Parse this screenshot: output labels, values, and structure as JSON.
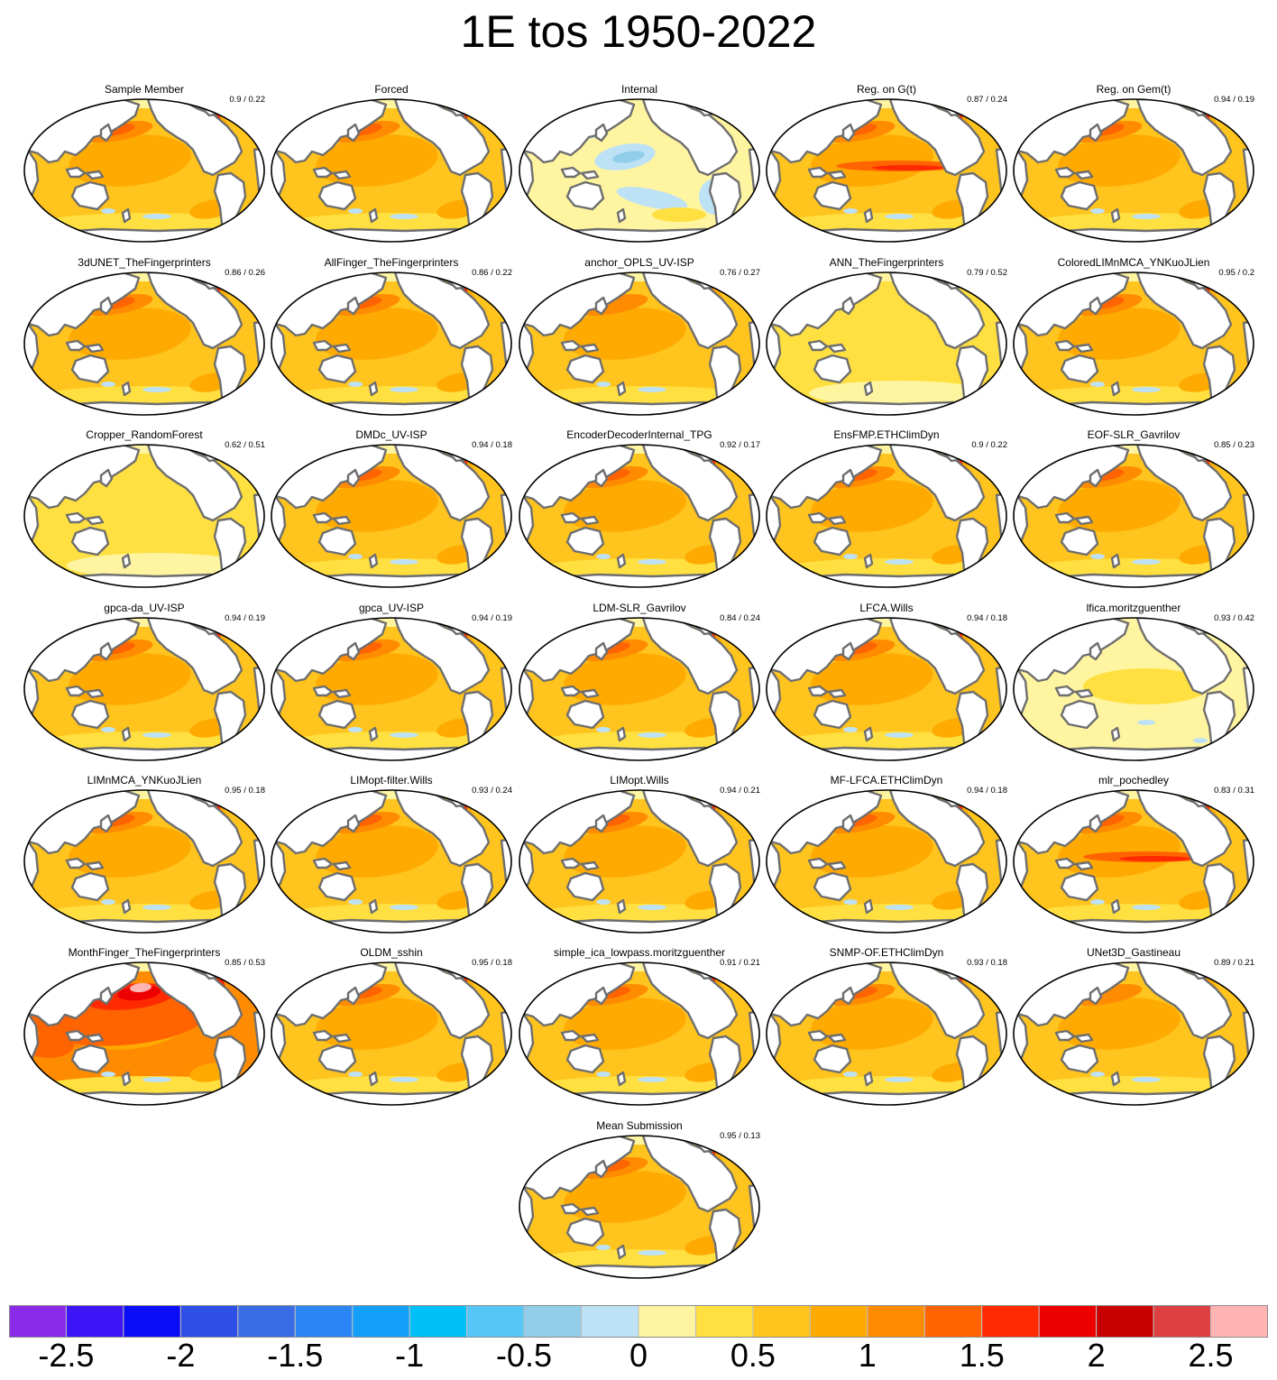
{
  "title": "1E tos 1950-2022",
  "chart_data": {
    "type": "heatmap",
    "title": "1E tos 1950-2022",
    "projection": "global ellipse map, Pacific-centered",
    "colors": {
      "land": "#ffffff",
      "coast": "#6e6e6e",
      "outline": "#000000"
    },
    "colorbar": {
      "orientation": "horizontal",
      "placement": "bottom",
      "range": [
        -2.75,
        2.75
      ],
      "bin_width": 0.25,
      "tick_labels": [
        "-2.5",
        "-2",
        "-1.5",
        "-1",
        "-0.5",
        "0",
        "0.5",
        "1",
        "1.5",
        "2",
        "2.5"
      ],
      "tick_values": [
        -2.5,
        -2,
        -1.5,
        -1,
        -0.5,
        0,
        0.5,
        1,
        1.5,
        2,
        2.5
      ],
      "colors": [
        "#8a2be8",
        "#3d14f5",
        "#0a0dfa",
        "#2d4fe6",
        "#3a6ce6",
        "#2a86f5",
        "#14a0fa",
        "#00c0f8",
        "#55c6f5",
        "#92cde9",
        "#bde1f5",
        "#fff4a0",
        "#ffe040",
        "#ffc41e",
        "#ffaa00",
        "#ff8c00",
        "#ff6400",
        "#ff2a00",
        "#ee0000",
        "#c80000",
        "#dc4040",
        "#ffb4b4"
      ]
    },
    "panels": [
      {
        "name": "Sample Member",
        "stats": "0.9 / 0.22",
        "style": "sample"
      },
      {
        "name": "Forced",
        "stats": "",
        "style": "forced"
      },
      {
        "name": "Internal",
        "stats": "",
        "style": "internal"
      },
      {
        "name": "Reg. on G(t)",
        "stats": "0.87 / 0.24",
        "style": "warmEq"
      },
      {
        "name": "Reg. on Gem(t)",
        "stats": "0.94 / 0.19",
        "style": "typical"
      },
      {
        "name": "3dUNET_TheFingerprinters",
        "stats": "0.86 / 0.26",
        "style": "typical"
      },
      {
        "name": "AllFinger_TheFingerprinters",
        "stats": "0.86 / 0.22",
        "style": "typical"
      },
      {
        "name": "anchor_OPLS_UV-ISP",
        "stats": "0.76 / 0.27",
        "style": "mild"
      },
      {
        "name": "ANN_TheFingerprinters",
        "stats": "0.79 / 0.52",
        "style": "yellow"
      },
      {
        "name": "ColoredLIMnMCA_YNKuoJLien",
        "stats": "0.95 / 0.2",
        "style": "typical"
      },
      {
        "name": "Cropper_RandomForest",
        "stats": "0.62 / 0.51",
        "style": "yellow"
      },
      {
        "name": "DMDc_UV-ISP",
        "stats": "0.94 / 0.18",
        "style": "typical"
      },
      {
        "name": "EncoderDecoderInternal_TPG",
        "stats": "0.92 / 0.17",
        "style": "typical"
      },
      {
        "name": "EnsFMP.ETHClimDyn",
        "stats": "0.9 / 0.22",
        "style": "typical"
      },
      {
        "name": "EOF-SLR_Gavrilov",
        "stats": "0.85 / 0.23",
        "style": "typical"
      },
      {
        "name": "gpca-da_UV-ISP",
        "stats": "0.94 / 0.19",
        "style": "typical"
      },
      {
        "name": "gpca_UV-ISP",
        "stats": "0.94 / 0.19",
        "style": "typical"
      },
      {
        "name": "LDM-SLR_Gavrilov",
        "stats": "0.84 / 0.24",
        "style": "typical"
      },
      {
        "name": "LFCA.Wills",
        "stats": "0.94 / 0.18",
        "style": "typical"
      },
      {
        "name": "lfica.moritzguenther",
        "stats": "0.93 / 0.42",
        "style": "pale"
      },
      {
        "name": "LIMnMCA_YNKuoJLien",
        "stats": "0.95 / 0.18",
        "style": "typical"
      },
      {
        "name": "LIMopt-filter.Wills",
        "stats": "0.93 / 0.24",
        "style": "typical"
      },
      {
        "name": "LIMopt.Wills",
        "stats": "0.94 / 0.21",
        "style": "typical"
      },
      {
        "name": "MF-LFCA.ETHClimDyn",
        "stats": "0.94 / 0.18",
        "style": "typical"
      },
      {
        "name": "mlr_pochedley",
        "stats": "0.83 / 0.31",
        "style": "warmEq"
      },
      {
        "name": "MonthFinger_TheFingerprinters",
        "stats": "0.85 / 0.53",
        "style": "hot"
      },
      {
        "name": "OLDM_sshin",
        "stats": "0.95 / 0.18",
        "style": "typical"
      },
      {
        "name": "simple_ica_lowpass.moritzguenther",
        "stats": "0.91 / 0.21",
        "style": "typical"
      },
      {
        "name": "SNMP-OF.ETHClimDyn",
        "stats": "0.93 / 0.18",
        "style": "typical"
      },
      {
        "name": "UNet3D_Gastineau",
        "stats": "0.89 / 0.21",
        "style": "mild"
      },
      {
        "name": "Mean Submission",
        "stats": "0.95 / 0.13",
        "style": "typical"
      }
    ]
  }
}
